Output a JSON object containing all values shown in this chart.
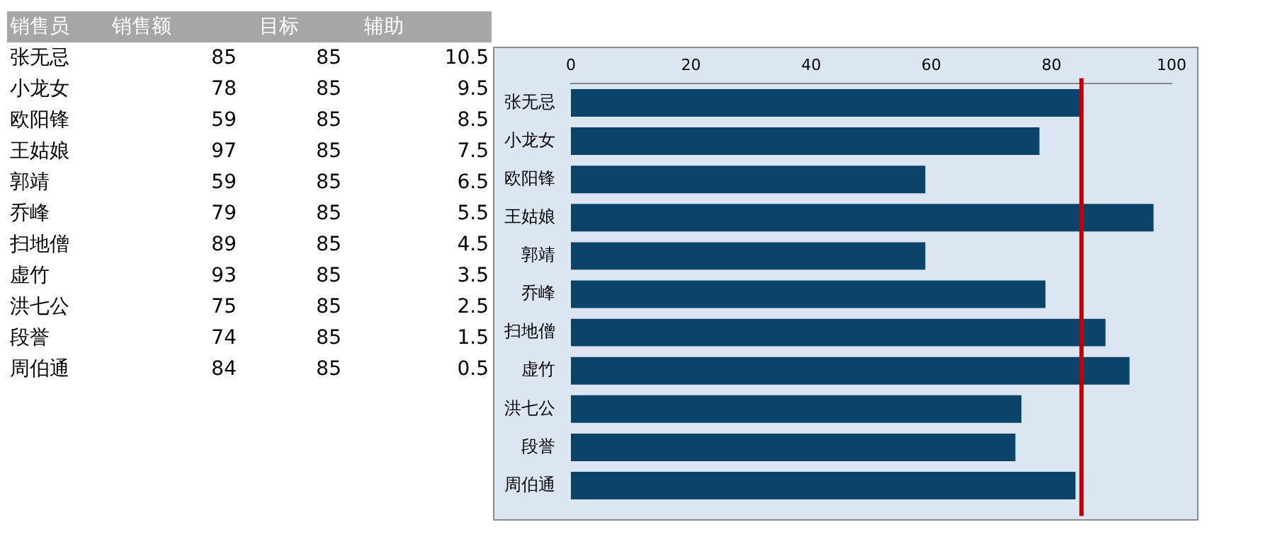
{
  "chart_data": [
    {
      "type": "other",
      "xlabel": "销售员",
      "categories": [
        "张无忌",
        "小龙女",
        "欧阳锋",
        "王姑娘",
        "郭靖",
        "乔峰",
        "扫地僧",
        "虚竹",
        "洪七公",
        "段誉",
        "周伯通"
      ],
      "series": [
        {
          "name": "销售额",
          "values": [
            85,
            78,
            59,
            97,
            59,
            79,
            89,
            93,
            75,
            74,
            84
          ]
        },
        {
          "name": "目标",
          "values": [
            85,
            85,
            85,
            85,
            85,
            85,
            85,
            85,
            85,
            85,
            85
          ]
        },
        {
          "name": "辅助",
          "values": [
            10.5,
            9.5,
            8.5,
            7.5,
            6.5,
            5.5,
            4.5,
            3.5,
            2.5,
            1.5,
            0.5
          ]
        }
      ],
      "data_labels": true
    },
    {
      "type": "bar",
      "orientation": "horizontal",
      "categories": [
        "张无忌",
        "小龙女",
        "欧阳锋",
        "王姑娘",
        "郭靖",
        "乔峰",
        "扫地僧",
        "虚竹",
        "洪七公",
        "段誉",
        "周伯通"
      ],
      "values": [
        85,
        78,
        59,
        97,
        59,
        79,
        89,
        93,
        75,
        74,
        84
      ],
      "color": "#0b4468",
      "xlim": [
        0,
        100
      ],
      "xticks": [
        0,
        20,
        40,
        60,
        80,
        100
      ],
      "grid": false,
      "legend": false,
      "ref_lines": [
        {
          "axis": "x",
          "value": 85,
          "color": "#c00000"
        }
      ]
    }
  ]
}
